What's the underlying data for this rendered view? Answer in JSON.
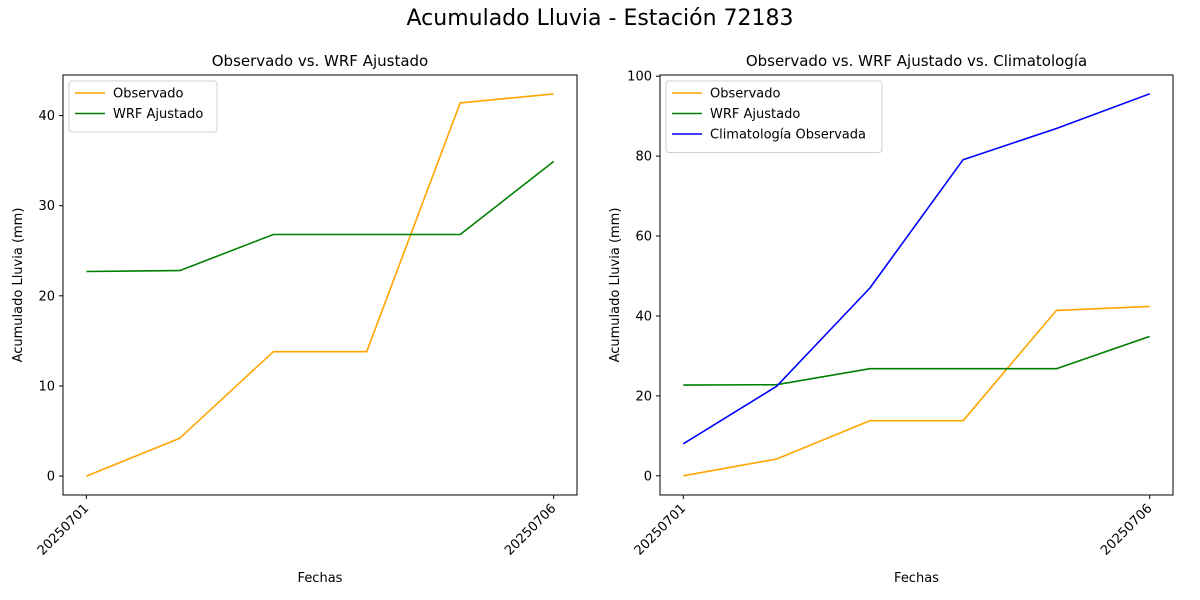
{
  "suptitle": "Acumulado Lluvia - Estación 72183",
  "colors": {
    "observado": "#ffa500",
    "wrf": "#008000",
    "clima": "#0000ff"
  },
  "chart_data": [
    {
      "type": "line",
      "title": "Observado vs. WRF Ajustado",
      "xlabel": "Fechas",
      "ylabel": "Acumulado Lluvia (mm)",
      "x": [
        1,
        2,
        3,
        4,
        5,
        6
      ],
      "xtick_positions": [
        1,
        6
      ],
      "xtick_labels": [
        "20250701",
        "20250706"
      ],
      "xlim": [
        0.75,
        6.25
      ],
      "ylim": [
        -2.1,
        44.5
      ],
      "yticks": [
        0,
        10,
        20,
        30,
        40
      ],
      "legend_loc": "upper-left",
      "series": [
        {
          "name": "Observado",
          "color": "#ffa500",
          "values": [
            0.0,
            4.2,
            13.8,
            13.8,
            41.4,
            42.4
          ]
        },
        {
          "name": "WRF Ajustado",
          "color": "#008000",
          "values": [
            22.7,
            22.8,
            26.8,
            26.8,
            26.8,
            34.9
          ]
        }
      ]
    },
    {
      "type": "line",
      "title": "Observado vs. WRF Ajustado vs. Climatología",
      "xlabel": "Fechas",
      "ylabel": "Acumulado Lluvia (mm)",
      "x": [
        1,
        2,
        3,
        4,
        5,
        6
      ],
      "xtick_positions": [
        1,
        6
      ],
      "xtick_labels": [
        "20250701",
        "20250706"
      ],
      "xlim": [
        0.75,
        6.25
      ],
      "ylim": [
        -4.8,
        100.3
      ],
      "yticks": [
        0,
        20,
        40,
        60,
        80,
        100
      ],
      "legend_loc": "upper-left",
      "series": [
        {
          "name": "Observado",
          "color": "#ffa500",
          "values": [
            0.0,
            4.2,
            13.8,
            13.8,
            41.4,
            42.4
          ]
        },
        {
          "name": "WRF Ajustado",
          "color": "#008000",
          "values": [
            22.7,
            22.8,
            26.8,
            26.8,
            26.8,
            34.9
          ]
        },
        {
          "name": "Climatología Observada",
          "color": "#0000ff",
          "values": [
            8.0,
            22.4,
            47.0,
            79.1,
            86.9,
            95.6
          ]
        }
      ]
    }
  ]
}
